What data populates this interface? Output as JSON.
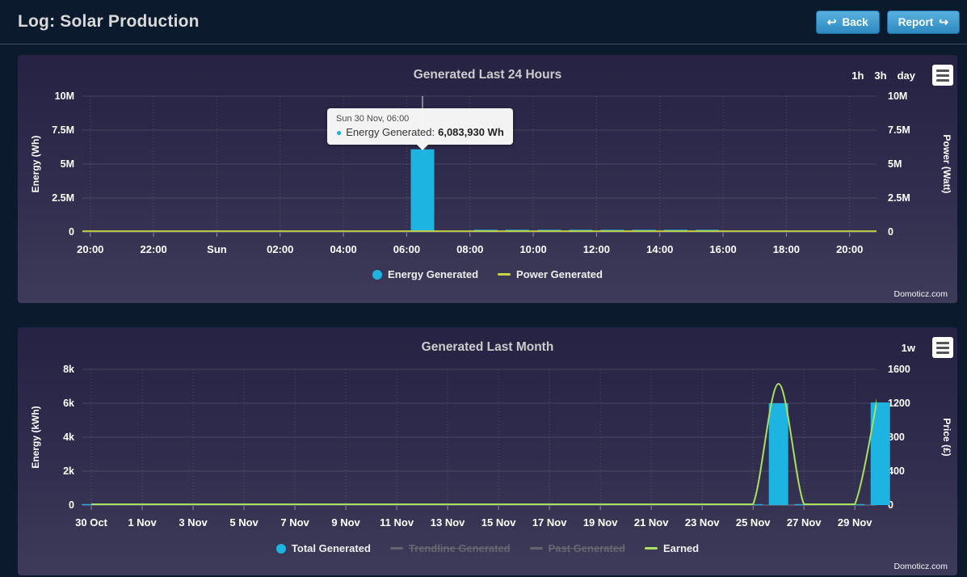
{
  "header": {
    "title": "Log: Solar Production",
    "back_label": "Back",
    "report_label": "Report",
    "back_icon": "↩",
    "report_icon": "↪"
  },
  "credits": "Domoticz.com",
  "colors": {
    "bar": "#1db4e2",
    "power_line": "#c8d53f",
    "earned_line": "#a9e05f",
    "disabled_legend": "#666670",
    "button_gradient_top": "#58b0de",
    "button_gradient_bottom": "#2e8bc0"
  },
  "chart_data": [
    {
      "type": "bar",
      "title": "Generated Last 24 Hours",
      "range_buttons": [
        "1h",
        "3h",
        "day"
      ],
      "ylabel_left": "Energy (Wh)",
      "ylabel_right": "Power (Watt)",
      "yticks": [
        "0",
        "2.5M",
        "5M",
        "7.5M",
        "10M"
      ],
      "yticks_right": [
        "0",
        "2.5M",
        "5M",
        "7.5M",
        "10M"
      ],
      "ylim": [
        0,
        10000000
      ],
      "ylim_right": [
        0,
        10000000
      ],
      "xticks": [
        "20:00",
        "22:00",
        "Sun",
        "02:00",
        "04:00",
        "06:00",
        "08:00",
        "10:00",
        "12:00",
        "14:00",
        "16:00",
        "18:00",
        "20:00"
      ],
      "grid": true,
      "legend_position": "bottom-center",
      "series": [
        {
          "name": "Energy Generated",
          "type": "column",
          "axis": "left",
          "color": "#1db4e2",
          "marker": "circle",
          "active": true,
          "x_unit": "hours from 20:00",
          "values": [
            0,
            0,
            0,
            0,
            0,
            0,
            0,
            0,
            0,
            0,
            6083930,
            0,
            160000,
            160000,
            160000,
            160000,
            160000,
            160000,
            160000,
            160000,
            0,
            0,
            0,
            0,
            0
          ]
        },
        {
          "name": "Power Generated",
          "type": "line",
          "axis": "right",
          "color": "#c8d53f",
          "marker": "line",
          "active": true,
          "x_unit": "hours from 20:00",
          "values": [
            0,
            0,
            0,
            0,
            0,
            0,
            0,
            0,
            0,
            0,
            0,
            0,
            0,
            0,
            0,
            0,
            0,
            0,
            0,
            0,
            0,
            0,
            0,
            0,
            0
          ]
        }
      ],
      "tooltip": {
        "heading": "Sun 30 Nov, 06:00",
        "series_label": "Energy Generated:",
        "value": "6,083,930 Wh",
        "bullet_color": "#1db4e2",
        "bar_index": 10
      }
    },
    {
      "type": "bar",
      "title": "Generated Last Month",
      "range_buttons": [
        "1w"
      ],
      "ylabel_left": "Energy (kWh)",
      "ylabel_right": "Price (£)",
      "yticks": [
        "0",
        "2k",
        "4k",
        "6k",
        "8k"
      ],
      "yticks_right": [
        "0",
        "400",
        "800",
        "1200",
        "1600"
      ],
      "ylim": [
        0,
        8000
      ],
      "ylim_right": [
        0,
        1600
      ],
      "xticks": [
        "30 Oct",
        "1 Nov",
        "3 Nov",
        "5 Nov",
        "7 Nov",
        "9 Nov",
        "11 Nov",
        "13 Nov",
        "15 Nov",
        "17 Nov",
        "19 Nov",
        "21 Nov",
        "23 Nov",
        "25 Nov",
        "27 Nov",
        "29 Nov"
      ],
      "grid": true,
      "legend_position": "bottom-center",
      "series": [
        {
          "name": "Total Generated",
          "type": "column",
          "axis": "left",
          "color": "#1db4e2",
          "marker": "circle",
          "active": true,
          "x_unit": "days from 30 Oct",
          "values": [
            20,
            20,
            20,
            20,
            20,
            20,
            20,
            20,
            20,
            20,
            20,
            20,
            20,
            20,
            20,
            20,
            20,
            20,
            20,
            20,
            20,
            20,
            20,
            20,
            20,
            20,
            20,
            6000,
            20,
            20,
            20,
            6050
          ]
        },
        {
          "name": "Trendline Generated",
          "type": "line",
          "axis": "left",
          "color": "#666670",
          "marker": "line",
          "active": false,
          "values": []
        },
        {
          "name": "Past Generated",
          "type": "line",
          "axis": "left",
          "color": "#666670",
          "marker": "line",
          "active": false,
          "values": []
        },
        {
          "name": "Earned",
          "type": "spline",
          "axis": "right",
          "color": "#a9e05f",
          "marker": "line",
          "active": true,
          "x_unit": "days from 30 Oct",
          "values": [
            0,
            0,
            0,
            0,
            0,
            0,
            0,
            0,
            0,
            0,
            0,
            0,
            0,
            0,
            0,
            0,
            0,
            0,
            0,
            0,
            0,
            0,
            0,
            0,
            0,
            0,
            0,
            1430,
            0,
            0,
            0,
            1450
          ]
        }
      ]
    }
  ]
}
